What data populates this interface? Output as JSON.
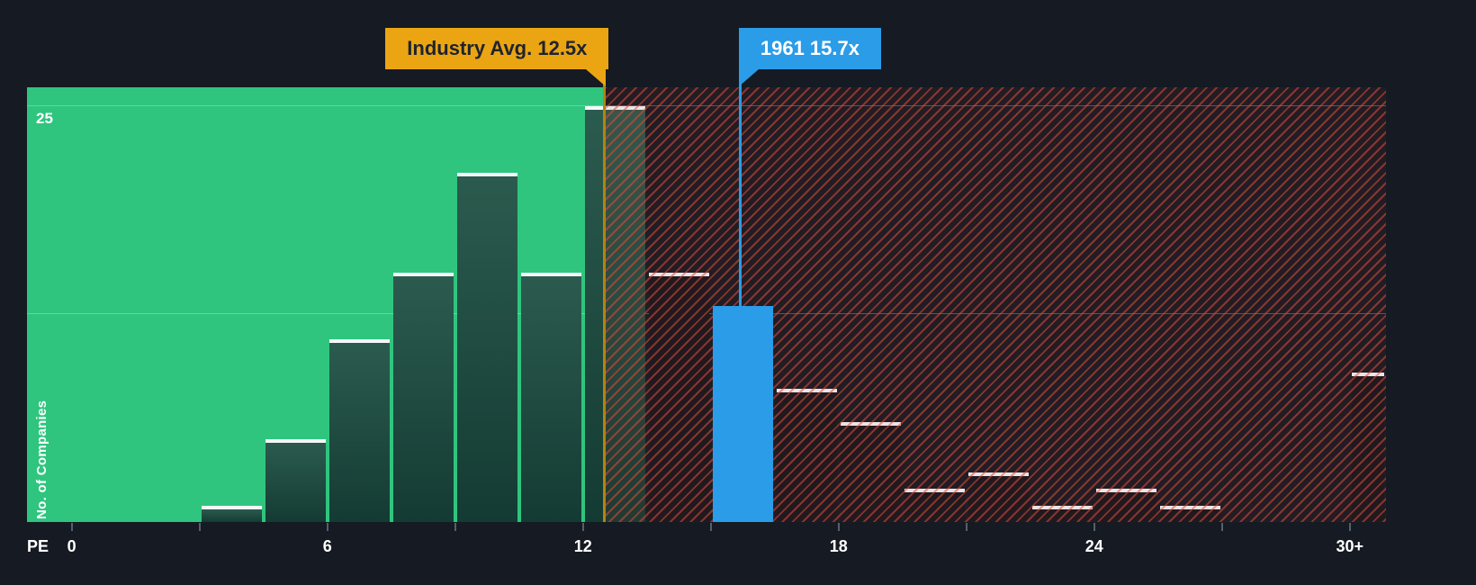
{
  "colors": {
    "bg": "#151A23",
    "green_zone": "#2FC57E",
    "bar_teal_top": "#2B5B4E",
    "bar_teal_bottom": "#143B33",
    "bar_dark": "#12171E",
    "bar_cap": "#F5F8FA",
    "hatch_stripe": "rgba(224,74,60,0.55)",
    "hatch_base": "rgba(160,45,38,0.10)",
    "highlight_blue": "#2B9CE8",
    "marker_yellow": "#EBA513",
    "marker_yellow_line": "#B38410",
    "gridline": "rgba(255,255,255,0.28)",
    "tick": "#56606D",
    "axis_text": "#FFFFFF",
    "callout_text_dark": "#1E242D"
  },
  "chart_data": {
    "type": "bar",
    "xlabel": "PE",
    "ylabel": "No. of Companies",
    "ylim": [
      0,
      25
    ],
    "gridlines": [
      12.5,
      25
    ],
    "y_tick_labels": [
      {
        "value": 25,
        "label": "25"
      }
    ],
    "x_range_pe": [
      -1.05,
      30.85
    ],
    "green_zone_end_pe": 12.5,
    "x_ticks": [
      {
        "pe": 0,
        "label": "0"
      },
      {
        "pe": 6,
        "label": "6"
      },
      {
        "pe": 12,
        "label": "12"
      },
      {
        "pe": 18,
        "label": "18"
      },
      {
        "pe": 24,
        "label": "24"
      },
      {
        "pe": 30,
        "label": "30+"
      }
    ],
    "x_minor_ticks_pe": [
      0,
      3,
      6,
      9,
      12,
      15,
      18,
      21,
      24,
      27,
      30
    ],
    "bars": [
      {
        "pe_start": 3,
        "pe_end": 4.5,
        "count": 1,
        "zone": "under"
      },
      {
        "pe_start": 4.5,
        "pe_end": 6,
        "count": 5,
        "zone": "under"
      },
      {
        "pe_start": 6,
        "pe_end": 7.5,
        "count": 11,
        "zone": "under"
      },
      {
        "pe_start": 7.5,
        "pe_end": 9,
        "count": 15,
        "zone": "under"
      },
      {
        "pe_start": 9,
        "pe_end": 10.5,
        "count": 21,
        "zone": "under"
      },
      {
        "pe_start": 10.5,
        "pe_end": 12,
        "count": 15,
        "zone": "under"
      },
      {
        "pe_start": 12,
        "pe_end": 13.5,
        "count": 25,
        "zone": "under"
      },
      {
        "pe_start": 13.5,
        "pe_end": 15,
        "count": 15,
        "zone": "over"
      },
      {
        "pe_start": 15,
        "pe_end": 16.5,
        "count": 13,
        "zone": "highlight"
      },
      {
        "pe_start": 16.5,
        "pe_end": 18,
        "count": 8,
        "zone": "over"
      },
      {
        "pe_start": 18,
        "pe_end": 19.5,
        "count": 6,
        "zone": "over"
      },
      {
        "pe_start": 19.5,
        "pe_end": 21,
        "count": 2,
        "zone": "over"
      },
      {
        "pe_start": 21,
        "pe_end": 22.5,
        "count": 3,
        "zone": "over"
      },
      {
        "pe_start": 22.5,
        "pe_end": 24,
        "count": 1,
        "zone": "over"
      },
      {
        "pe_start": 24,
        "pe_end": 25.5,
        "count": 2,
        "zone": "over"
      },
      {
        "pe_start": 25.5,
        "pe_end": 27,
        "count": 1,
        "zone": "over"
      },
      {
        "pe_start": 30,
        "pe_end": 30.85,
        "count": 9,
        "zone": "over"
      }
    ],
    "markers": {
      "industry": {
        "label": "Industry Avg. 12.5x",
        "pe": 12.5
      },
      "company": {
        "label": "1961 15.7x",
        "pe": 15.7
      }
    }
  }
}
